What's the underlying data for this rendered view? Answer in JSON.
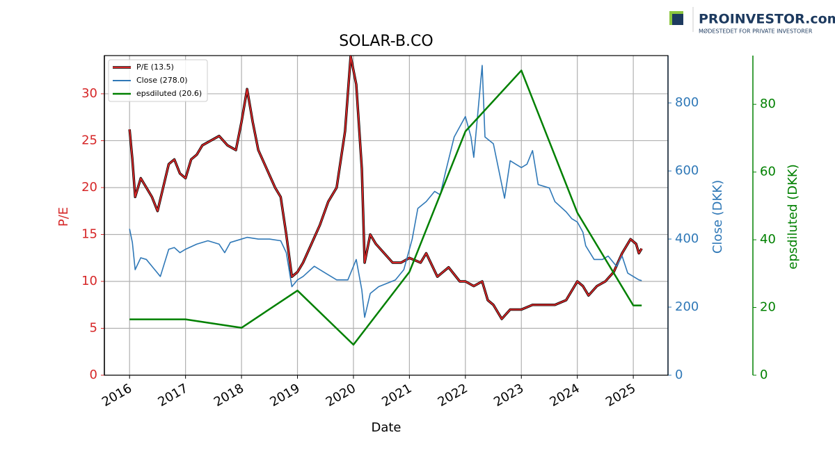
{
  "logo": {
    "name": "PROINVESTOR.com",
    "tagline": "MØDESTEDET FOR PRIVATE INVESTORER"
  },
  "chart_data": {
    "type": "line",
    "title": "SOLAR-B.CO",
    "x_label": "Date",
    "y_label": "P/E",
    "y2_label": "Close (DKK)",
    "y3_label": "epsdiluted (DKK)",
    "xlim": [
      2015.55,
      2025.62
    ],
    "xticks": [
      2016,
      2017,
      2018,
      2019,
      2020,
      2021,
      2022,
      2023,
      2024,
      2025
    ],
    "ylim": [
      0,
      34.07
    ],
    "yticks": [
      0,
      5,
      10,
      15,
      20,
      25,
      30
    ],
    "y2lim": [
      0,
      939
    ],
    "y2ticks": [
      0,
      200,
      400,
      600,
      800
    ],
    "y3lim": [
      0,
      94.4
    ],
    "y3ticks": [
      0,
      20,
      40,
      60,
      80
    ],
    "grid": true,
    "legend": "upper-left",
    "series": [
      {
        "name": "P/E (13.5)",
        "color": "#d62728",
        "axis": "y",
        "x": [
          2016.0,
          2016.05,
          2016.1,
          2016.2,
          2016.3,
          2016.4,
          2016.5,
          2016.6,
          2016.7,
          2016.8,
          2016.9,
          2017.0,
          2017.1,
          2017.2,
          2017.3,
          2017.45,
          2017.6,
          2017.75,
          2017.9,
          2018.0,
          2018.1,
          2018.2,
          2018.3,
          2018.45,
          2018.6,
          2018.7,
          2018.8,
          2018.9,
          2019.0,
          2019.1,
          2019.25,
          2019.4,
          2019.55,
          2019.7,
          2019.85,
          2019.95,
          2020.05,
          2020.15,
          2020.2,
          2020.3,
          2020.4,
          2020.55,
          2020.7,
          2020.85,
          2021.0,
          2021.2,
          2021.3,
          2021.5,
          2021.7,
          2021.9,
          2022.0,
          2022.15,
          2022.3,
          2022.4,
          2022.5,
          2022.65,
          2022.8,
          2023.0,
          2023.2,
          2023.4,
          2023.6,
          2023.8,
          2024.0,
          2024.1,
          2024.2,
          2024.35,
          2024.5,
          2024.65,
          2024.8,
          2024.95,
          2025.05,
          2025.1,
          2025.15
        ],
        "values": [
          26.2,
          23,
          19,
          21,
          20,
          19,
          17.5,
          20,
          22.5,
          23,
          21.5,
          21,
          23,
          23.5,
          24.5,
          25,
          25.5,
          24.5,
          24,
          27,
          30.5,
          27,
          24,
          22,
          20,
          19,
          15,
          10.5,
          11,
          12,
          14,
          16,
          18.5,
          20,
          26,
          34,
          31,
          22,
          12,
          15,
          14,
          13,
          12,
          12,
          12.5,
          12,
          13,
          10.5,
          11.5,
          10,
          10,
          9.5,
          10,
          8,
          7.5,
          6,
          7,
          7,
          7.5,
          7.5,
          7.5,
          8,
          10,
          9.5,
          8.5,
          9.5,
          10,
          11,
          13,
          14.5,
          14,
          13,
          13.5
        ]
      },
      {
        "name": "Close (278.0)",
        "color": "#2f78b7",
        "axis": "y2",
        "x": [
          2016.0,
          2016.05,
          2016.1,
          2016.2,
          2016.3,
          2016.4,
          2016.5,
          2016.55,
          2016.7,
          2016.8,
          2016.9,
          2017.0,
          2017.2,
          2017.4,
          2017.6,
          2017.7,
          2017.8,
          2018.0,
          2018.1,
          2018.3,
          2018.5,
          2018.7,
          2018.8,
          2018.9,
          2019.0,
          2019.1,
          2019.3,
          2019.5,
          2019.7,
          2019.9,
          2020.05,
          2020.15,
          2020.2,
          2020.3,
          2020.45,
          2020.6,
          2020.75,
          2020.9,
          2021.05,
          2021.15,
          2021.3,
          2021.45,
          2021.55,
          2021.65,
          2021.8,
          2021.9,
          2022.0,
          2022.1,
          2022.15,
          2022.3,
          2022.35,
          2022.5,
          2022.6,
          2022.7,
          2022.8,
          2022.9,
          2023.0,
          2023.1,
          2023.2,
          2023.3,
          2023.5,
          2023.6,
          2023.8,
          2023.9,
          2024.0,
          2024.1,
          2024.15,
          2024.3,
          2024.45,
          2024.55,
          2024.7,
          2024.8,
          2024.9,
          2025.0,
          2025.1,
          2025.15
        ],
        "values": [
          430,
          390,
          310,
          345,
          340,
          320,
          300,
          290,
          370,
          375,
          360,
          370,
          385,
          395,
          385,
          360,
          390,
          400,
          405,
          400,
          400,
          395,
          360,
          260,
          280,
          290,
          320,
          300,
          280,
          280,
          340,
          250,
          170,
          240,
          260,
          270,
          280,
          310,
          400,
          490,
          510,
          540,
          530,
          600,
          700,
          730,
          760,
          700,
          640,
          910,
          700,
          680,
          600,
          520,
          630,
          620,
          610,
          620,
          660,
          560,
          550,
          510,
          480,
          460,
          450,
          420,
          380,
          340,
          340,
          350,
          320,
          350,
          300,
          290,
          280,
          278
        ]
      },
      {
        "name": "epsdiluted (20.6)",
        "color": "#008000",
        "axis": "y3",
        "x": [
          2016.0,
          2017.0,
          2018.0,
          2019.0,
          2020.0,
          2021.0,
          2022.0,
          2023.0,
          2024.0,
          2025.0,
          2025.15
        ],
        "values": [
          16.5,
          16.5,
          14,
          25,
          9,
          30.5,
          72,
          90,
          48,
          20.6,
          20.6
        ]
      }
    ]
  }
}
